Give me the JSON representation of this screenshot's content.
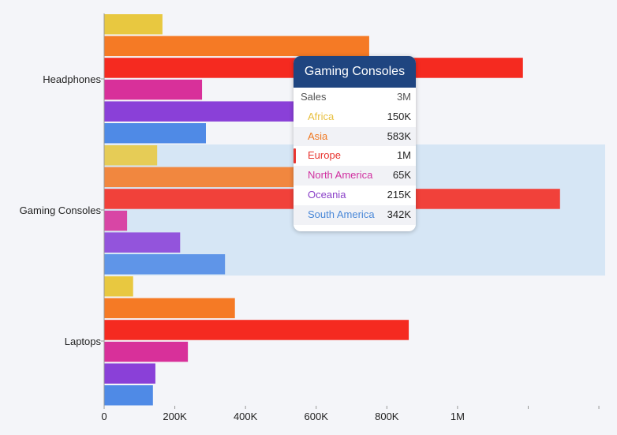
{
  "chart_data": {
    "type": "bar",
    "orientation": "horizontal",
    "categories": [
      "Headphones",
      "Gaming Consoles",
      "Laptops"
    ],
    "series": [
      {
        "name": "Africa",
        "color": "#e8c840",
        "values": [
          165000,
          150000,
          82000
        ]
      },
      {
        "name": "Asia",
        "color": "#f57a25",
        "values": [
          750000,
          583000,
          370000
        ]
      },
      {
        "name": "Europe",
        "color": "#f52a20",
        "values": [
          1185000,
          1290000,
          862000
        ]
      },
      {
        "name": "North America",
        "color": "#d8309a",
        "values": [
          277000,
          65000,
          237000
        ]
      },
      {
        "name": "Oceania",
        "color": "#8a40d8",
        "values": [
          580000,
          215000,
          145000
        ]
      },
      {
        "name": "South America",
        "color": "#4f8ae6",
        "values": [
          288000,
          342000,
          138000
        ]
      }
    ],
    "x_ticks": [
      "0",
      "200K",
      "400K",
      "600K",
      "800K",
      "1M"
    ],
    "xlim": [
      0,
      1420000
    ],
    "highlighted_category": "Gaming Consoles",
    "highlight_color": "#d6e6f5"
  },
  "tooltip": {
    "title": "Gaming Consoles",
    "total_label": "Sales",
    "total_value": "3M",
    "active": "Europe",
    "rows": [
      {
        "name": "Africa",
        "value": "150K",
        "color": "#e8c040"
      },
      {
        "name": "Asia",
        "value": "583K",
        "color": "#f07820"
      },
      {
        "name": "Europe",
        "value": "1M",
        "color": "#e83530"
      },
      {
        "name": "North America",
        "value": "65K",
        "color": "#d030a0"
      },
      {
        "name": "Oceania",
        "value": "215K",
        "color": "#8a40c8"
      },
      {
        "name": "South America",
        "value": "342K",
        "color": "#4a88d8"
      }
    ]
  }
}
